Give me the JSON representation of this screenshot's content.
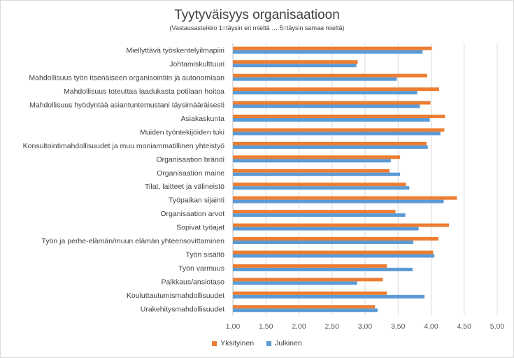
{
  "chart_data": {
    "type": "bar",
    "orientation": "horizontal",
    "title": "Tyytyväisyys organisaatioon",
    "subtitle": "(Vastausasteikko 1=täysin eri mieltä … 5=täysin samaa mieltä)",
    "categories": [
      "Miellyttävä työskentelyilmapiiri",
      "Johtamiskulttuuri",
      "Mahdollisuus työn itsenäiseen organisointiin ja autonomiaan",
      "Mahdollisuus toteuttaa laadukasta potilaan hoitoa",
      "Mahdollisuus hyödyntää asiantuntemustani täysimääräisesti",
      "Asiakaskunta",
      "Muiden työntekijöiden tuki",
      "Konsultointimahdollisuudet ja muu moniammatillinen yhteistyö",
      "Organisaation brändi",
      "Organisaation maine",
      "Tilat, laitteet ja välineistö",
      "Työpaikan sijainti",
      "Organisaation arvot",
      "Sopivat työajat",
      "Työn ja perhe-elämän/muun elämän yhteensovittaminen",
      "Työn sisältö",
      "Työn varmuus",
      "Palkkaus/ansiotaso",
      "Kouluttautumismahdollisuudet",
      "Urakehitysmahdollisuudet"
    ],
    "series": [
      {
        "name": "Yksityinen",
        "color": "#ed7d31",
        "values": [
          4.01,
          2.89,
          3.94,
          4.12,
          3.99,
          4.21,
          4.2,
          3.93,
          3.53,
          3.37,
          3.62,
          4.39,
          3.46,
          4.27,
          4.11,
          4.03,
          3.33,
          3.27,
          3.33,
          3.15
        ]
      },
      {
        "name": "Julkinen",
        "color": "#5b9bd5",
        "values": [
          3.87,
          2.87,
          3.48,
          3.79,
          3.83,
          3.98,
          4.14,
          3.95,
          3.39,
          3.53,
          3.67,
          4.19,
          3.61,
          3.81,
          3.73,
          4.05,
          3.72,
          2.88,
          3.9,
          3.19
        ]
      }
    ],
    "x_ticks": [
      "1,00",
      "1,50",
      "2,00",
      "2,50",
      "3,00",
      "3,50",
      "4,00",
      "4,50",
      "5,00"
    ],
    "xlim": [
      1,
      5
    ],
    "grid": true,
    "legend_position": "bottom"
  }
}
